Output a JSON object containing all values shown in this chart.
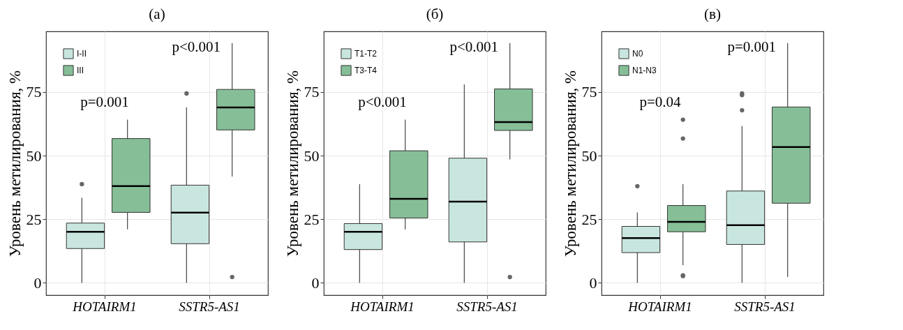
{
  "chart_data": [
    {
      "type": "box",
      "title": "(а)",
      "ylabel": "Уровень метилирования, %",
      "categories": [
        "HOTAIRM1",
        "SSTR5-AS1"
      ],
      "ylim": [
        -4.8,
        98.8
      ],
      "yticks": [
        0,
        25,
        50,
        75
      ],
      "grid": true,
      "legend": "top left",
      "series": [
        {
          "name": "I-II",
          "color": "#c8e6df",
          "boxes": [
            {
              "low": 0,
              "q1": 13.5,
              "median": 20.1,
              "q3": 23.5,
              "high": 33.4,
              "outliers": [
                38.8
              ]
            },
            {
              "low": 0,
              "q1": 15.4,
              "median": 27.6,
              "q3": 38.4,
              "high": 68.9,
              "outliers": [
                74.4
              ]
            }
          ]
        },
        {
          "name": "III",
          "color": "#86bf97",
          "boxes": [
            {
              "low": 21.0,
              "q1": 27.7,
              "median": 38.0,
              "q3": 56.7,
              "high": 64.1
            },
            {
              "low": 41.8,
              "q1": 60.1,
              "median": 68.9,
              "q3": 76.0,
              "high": 94.2,
              "outliers": [
                2.3
              ]
            }
          ]
        }
      ],
      "annotations": [
        "p=0.001",
        "p<0.001"
      ]
    },
    {
      "type": "box",
      "title": "(б)",
      "ylabel": "Уровень метилирования, %",
      "categories": [
        "HOTAIRM1",
        "SSTR5-AS1"
      ],
      "ylim": [
        -4.8,
        98.8
      ],
      "yticks": [
        0,
        25,
        50,
        75
      ],
      "grid": true,
      "legend": "top left",
      "series": [
        {
          "name": "T1-T2",
          "color": "#c8e6df",
          "boxes": [
            {
              "low": 0,
              "q1": 13.1,
              "median": 20.1,
              "q3": 23.3,
              "high": 38.8
            },
            {
              "low": 0,
              "q1": 16.1,
              "median": 31.9,
              "q3": 49.0,
              "high": 78.0
            }
          ]
        },
        {
          "name": "T3-T4",
          "color": "#86bf97",
          "boxes": [
            {
              "low": 21.0,
              "q1": 25.5,
              "median": 33.0,
              "q3": 51.9,
              "high": 64.1
            },
            {
              "low": 48.5,
              "q1": 59.9,
              "median": 63.2,
              "q3": 76.2,
              "high": 94.2,
              "outliers": [
                2.3
              ]
            }
          ]
        }
      ],
      "annotations": [
        "p<0.001",
        "p<0.001"
      ]
    },
    {
      "type": "box",
      "title": "(в)",
      "ylabel": "Уровень метилирования, %",
      "categories": [
        "HOTAIRM1",
        "SSTR5-AS1"
      ],
      "ylim": [
        -4.8,
        98.8
      ],
      "yticks": [
        0,
        25,
        50,
        75
      ],
      "grid": true,
      "legend": "top left",
      "series": [
        {
          "name": "N0",
          "color": "#c8e6df",
          "boxes": [
            {
              "low": 0,
              "q1": 11.9,
              "median": 17.6,
              "q3": 22.2,
              "high": 27.7,
              "outliers": [
                38.0
              ]
            },
            {
              "low": 0,
              "q1": 15.1,
              "median": 22.7,
              "q3": 36.1,
              "high": 61.6,
              "outliers": [
                74.4,
                73.8,
                67.8
              ]
            }
          ]
        },
        {
          "name": "N1-N3",
          "color": "#86bf97",
          "boxes": [
            {
              "low": 7.0,
              "q1": 20.1,
              "median": 24.0,
              "q3": 30.4,
              "high": 38.8,
              "outliers": [
                64.1,
                56.7,
                3.0,
                2.7
              ]
            },
            {
              "low": 2.3,
              "q1": 31.3,
              "median": 53.4,
              "q3": 69.1,
              "high": 94.2
            }
          ]
        }
      ],
      "annotations": [
        "p=0.04",
        "p=0.001"
      ]
    }
  ]
}
